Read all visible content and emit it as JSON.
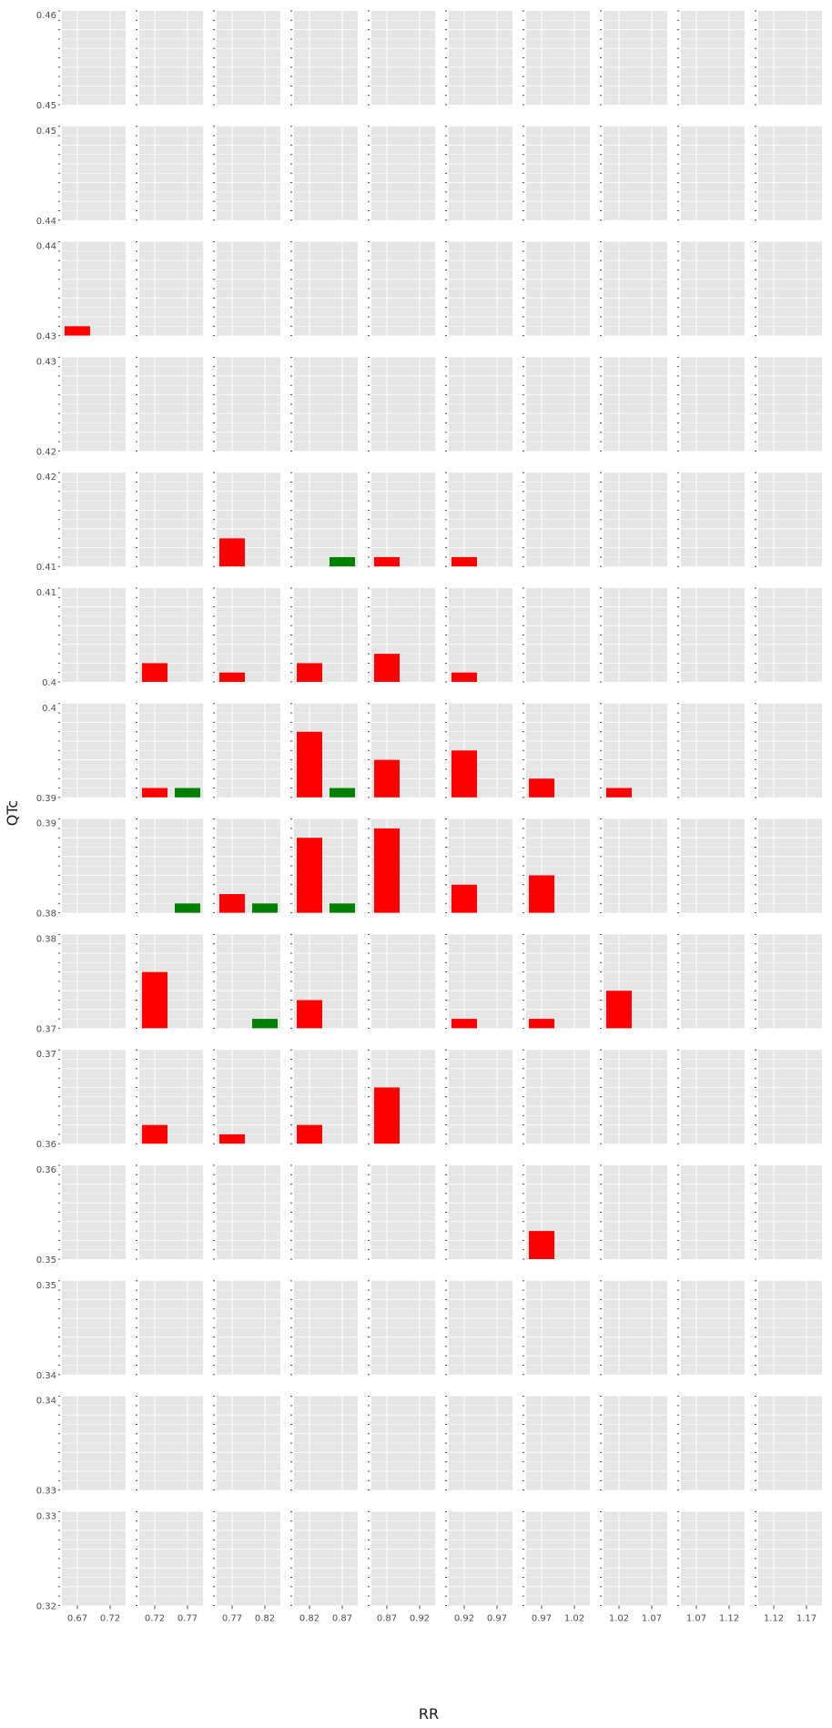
{
  "chart_data": {
    "type": "bar",
    "facet_grid": {
      "rows": 14,
      "cols": 10
    },
    "xlabel": "RR",
    "ylabel": "QTc",
    "col_ticks": [
      [
        "0.67",
        "0.72"
      ],
      [
        "0.72",
        "0.77"
      ],
      [
        "0.77",
        "0.82"
      ],
      [
        "0.82",
        "0.87"
      ],
      [
        "0.87",
        "0.92"
      ],
      [
        "0.92",
        "0.97"
      ],
      [
        "0.97",
        "1.02"
      ],
      [
        "1.02",
        "1.07"
      ],
      [
        "1.07",
        "1.12"
      ],
      [
        "1.12",
        "1.17"
      ]
    ],
    "row_ticks": [
      [
        "0.46",
        "0.45"
      ],
      [
        "0.45",
        "0.44"
      ],
      [
        "0.44",
        "0.43"
      ],
      [
        "0.43",
        "0.42"
      ],
      [
        "0.42",
        "0.41"
      ],
      [
        "0.41",
        "0.4"
      ],
      [
        "0.4",
        "0.39"
      ],
      [
        "0.39",
        "0.38"
      ],
      [
        "0.38",
        "0.37"
      ],
      [
        "0.37",
        "0.36"
      ],
      [
        "0.36",
        "0.35"
      ],
      [
        "0.35",
        "0.34"
      ],
      [
        "0.34",
        "0.33"
      ],
      [
        "0.33",
        "0.32"
      ]
    ],
    "ylim": [
      0,
      10
    ],
    "series_colors": {
      "red": "#ff0000",
      "green": "#008000"
    },
    "panel_background": "#e5e5e5",
    "grid": true,
    "bars": [
      {
        "row": 2,
        "col": 0,
        "slot": 0,
        "series": "red",
        "value": 1
      },
      {
        "row": 4,
        "col": 2,
        "slot": 0,
        "series": "red",
        "value": 3
      },
      {
        "row": 4,
        "col": 3,
        "slot": 1,
        "series": "green",
        "value": 1
      },
      {
        "row": 4,
        "col": 4,
        "slot": 0,
        "series": "red",
        "value": 1
      },
      {
        "row": 4,
        "col": 5,
        "slot": 0,
        "series": "red",
        "value": 1
      },
      {
        "row": 5,
        "col": 1,
        "slot": 0,
        "series": "red",
        "value": 2
      },
      {
        "row": 5,
        "col": 2,
        "slot": 0,
        "series": "red",
        "value": 1
      },
      {
        "row": 5,
        "col": 3,
        "slot": 0,
        "series": "red",
        "value": 2
      },
      {
        "row": 5,
        "col": 4,
        "slot": 0,
        "series": "red",
        "value": 3
      },
      {
        "row": 5,
        "col": 5,
        "slot": 0,
        "series": "red",
        "value": 1
      },
      {
        "row": 6,
        "col": 1,
        "slot": 0,
        "series": "red",
        "value": 1
      },
      {
        "row": 6,
        "col": 1,
        "slot": 1,
        "series": "green",
        "value": 1
      },
      {
        "row": 6,
        "col": 3,
        "slot": 0,
        "series": "red",
        "value": 7
      },
      {
        "row": 6,
        "col": 3,
        "slot": 1,
        "series": "green",
        "value": 1
      },
      {
        "row": 6,
        "col": 4,
        "slot": 0,
        "series": "red",
        "value": 4
      },
      {
        "row": 6,
        "col": 5,
        "slot": 0,
        "series": "red",
        "value": 5
      },
      {
        "row": 6,
        "col": 6,
        "slot": 0,
        "series": "red",
        "value": 2
      },
      {
        "row": 6,
        "col": 7,
        "slot": 0,
        "series": "red",
        "value": 1
      },
      {
        "row": 7,
        "col": 1,
        "slot": 1,
        "series": "green",
        "value": 1
      },
      {
        "row": 7,
        "col": 2,
        "slot": 0,
        "series": "red",
        "value": 2
      },
      {
        "row": 7,
        "col": 2,
        "slot": 1,
        "series": "green",
        "value": 1
      },
      {
        "row": 7,
        "col": 3,
        "slot": 0,
        "series": "red",
        "value": 8
      },
      {
        "row": 7,
        "col": 3,
        "slot": 1,
        "series": "green",
        "value": 1
      },
      {
        "row": 7,
        "col": 4,
        "slot": 0,
        "series": "red",
        "value": 9
      },
      {
        "row": 7,
        "col": 5,
        "slot": 0,
        "series": "red",
        "value": 3
      },
      {
        "row": 7,
        "col": 6,
        "slot": 0,
        "series": "red",
        "value": 4
      },
      {
        "row": 8,
        "col": 1,
        "slot": 0,
        "series": "red",
        "value": 6
      },
      {
        "row": 8,
        "col": 2,
        "slot": 1,
        "series": "green",
        "value": 1
      },
      {
        "row": 8,
        "col": 3,
        "slot": 0,
        "series": "red",
        "value": 3
      },
      {
        "row": 8,
        "col": 5,
        "slot": 0,
        "series": "red",
        "value": 1
      },
      {
        "row": 8,
        "col": 6,
        "slot": 0,
        "series": "red",
        "value": 1
      },
      {
        "row": 8,
        "col": 7,
        "slot": 0,
        "series": "red",
        "value": 4
      },
      {
        "row": 9,
        "col": 1,
        "slot": 0,
        "series": "red",
        "value": 2
      },
      {
        "row": 9,
        "col": 2,
        "slot": 0,
        "series": "red",
        "value": 1
      },
      {
        "row": 9,
        "col": 3,
        "slot": 0,
        "series": "red",
        "value": 2
      },
      {
        "row": 9,
        "col": 4,
        "slot": 0,
        "series": "red",
        "value": 6
      },
      {
        "row": 10,
        "col": 6,
        "slot": 0,
        "series": "red",
        "value": 3
      }
    ]
  }
}
